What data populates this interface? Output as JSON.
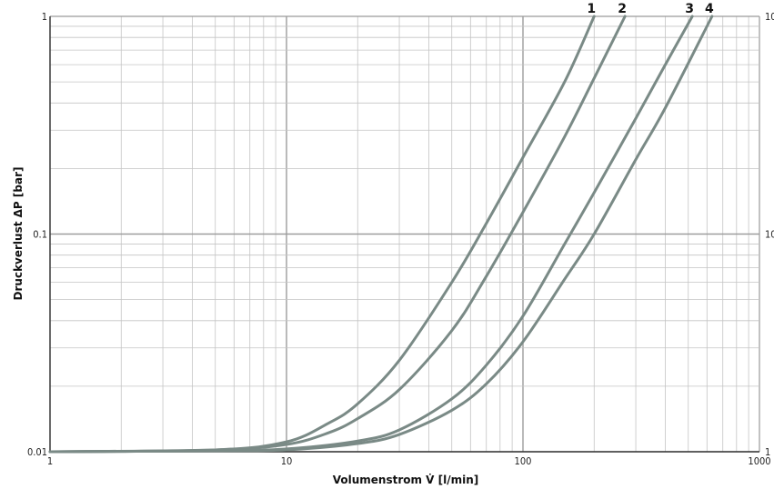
{
  "chart_data": {
    "type": "line",
    "title": "",
    "xlabel": "Volumenstrom V̇ [l/min]",
    "ylabel": "Druckverlust ΔP [bar]",
    "xscale": "log",
    "yscale": "log",
    "xlim": [
      1,
      1000
    ],
    "ylim": [
      0.01,
      1
    ],
    "x_ticks": [
      "1",
      "10",
      "100",
      "1000"
    ],
    "y_ticks": [
      "0.01",
      "0.1",
      "1"
    ],
    "right_ticks": [
      "1",
      "10",
      "10"
    ],
    "grid": true,
    "line_color": "#7a8a86",
    "series": [
      {
        "name": "1",
        "x": [
          1,
          5,
          10,
          15,
          20,
          30,
          50,
          70,
          100,
          150,
          200
        ],
        "y": [
          0.01,
          0.0102,
          0.0111,
          0.0135,
          0.0166,
          0.0263,
          0.06,
          0.112,
          0.225,
          0.5,
          1.0
        ]
      },
      {
        "name": "2",
        "x": [
          1,
          5,
          10,
          15,
          20,
          30,
          50,
          70,
          100,
          150,
          200,
          270
        ],
        "y": [
          0.01,
          0.0102,
          0.0108,
          0.0122,
          0.0142,
          0.0193,
          0.036,
          0.064,
          0.126,
          0.28,
          0.52,
          1.0
        ]
      },
      {
        "name": "3",
        "x": [
          1,
          5,
          10,
          20,
          30,
          50,
          70,
          100,
          150,
          200,
          300,
          400,
          520
        ],
        "y": [
          0.01,
          0.0101,
          0.0103,
          0.0112,
          0.0126,
          0.0175,
          0.025,
          0.042,
          0.09,
          0.155,
          0.34,
          0.6,
          1.0
        ]
      },
      {
        "name": "4",
        "x": [
          1,
          5,
          10,
          20,
          30,
          50,
          70,
          100,
          150,
          200,
          300,
          400,
          630
        ],
        "y": [
          0.01,
          0.0101,
          0.0102,
          0.0109,
          0.012,
          0.0155,
          0.0205,
          0.032,
          0.062,
          0.1,
          0.22,
          0.38,
          1.0
        ]
      }
    ]
  }
}
